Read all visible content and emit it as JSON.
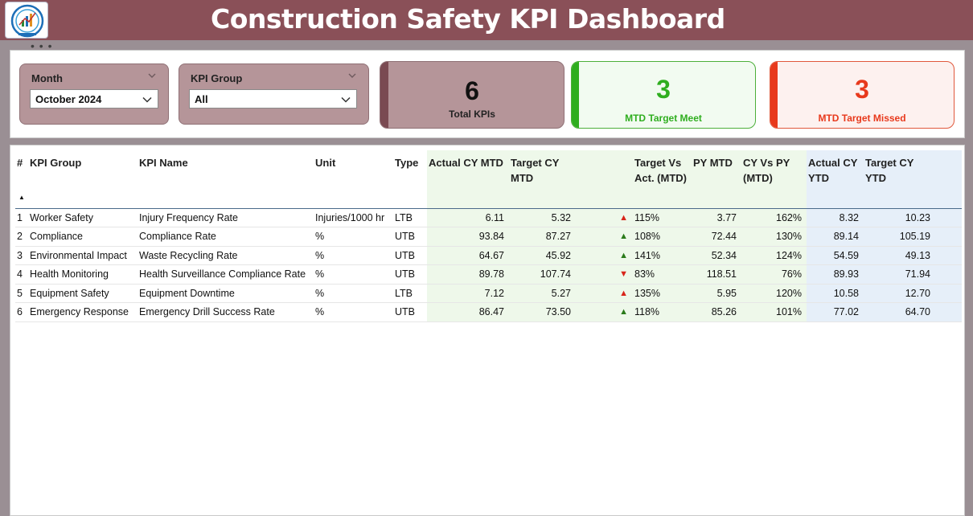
{
  "header": {
    "title": "Construction Safety KPI Dashboard",
    "logo_icon": "logo-icon"
  },
  "slicers": {
    "month": {
      "label": "Month",
      "value": "October 2024"
    },
    "kpi_group": {
      "label": "KPI Group",
      "value": "All"
    }
  },
  "cards": {
    "total": {
      "value": "6",
      "label": "Total KPIs"
    },
    "meet": {
      "value": "3",
      "label": "MTD Target Meet"
    },
    "missed": {
      "value": "3",
      "label": "MTD Target Missed"
    }
  },
  "colors": {
    "header_bg": "#8a5058",
    "accent_green": "#2fae1f",
    "accent_red": "#e8391c",
    "mtd_band": "#eef8ea",
    "ytd_band": "#e6eff9"
  },
  "table": {
    "headers": {
      "num": "#",
      "group": "KPI Group",
      "name": "KPI Name",
      "unit": "Unit",
      "type": "Type",
      "actual_mtd": "Actual CY MTD",
      "target_mtd": "Target CY MTD",
      "tva_mtd": "Target Vs Act. (MTD)",
      "py_mtd": "PY MTD",
      "cy_vs_py": "CY Vs PY (MTD)",
      "actual_ytd": "Actual CY YTD",
      "target_ytd": "Target CY YTD"
    },
    "rows": [
      {
        "num": "1",
        "group": "Worker Safety",
        "name": "Injury Frequency Rate",
        "unit": "Injuries/1000 hr",
        "type": "LTB",
        "actual_mtd": "6.11",
        "target_mtd": "5.32",
        "arrow": "▲",
        "arrow_icon": "up-red-triangle-icon",
        "tva": "115%",
        "py_mtd": "3.77",
        "cy_vs_py": "162%",
        "actual_ytd": "8.32",
        "target_ytd": "10.23"
      },
      {
        "num": "2",
        "group": "Compliance",
        "name": "Compliance Rate",
        "unit": "%",
        "type": "UTB",
        "actual_mtd": "93.84",
        "target_mtd": "87.27",
        "arrow": "▲",
        "arrow_icon": "up-green-triangle-icon",
        "tva": "108%",
        "py_mtd": "72.44",
        "cy_vs_py": "130%",
        "actual_ytd": "89.14",
        "target_ytd": "105.19"
      },
      {
        "num": "3",
        "group": "Environmental Impact",
        "name": "Waste Recycling Rate",
        "unit": "%",
        "type": "UTB",
        "actual_mtd": "64.67",
        "target_mtd": "45.92",
        "arrow": "▲",
        "arrow_icon": "up-green-triangle-icon",
        "tva": "141%",
        "py_mtd": "52.34",
        "cy_vs_py": "124%",
        "actual_ytd": "54.59",
        "target_ytd": "49.13"
      },
      {
        "num": "4",
        "group": "Health Monitoring",
        "name": "Health Surveillance Compliance Rate",
        "unit": "%",
        "type": "UTB",
        "actual_mtd": "89.78",
        "target_mtd": "107.74",
        "arrow": "▼",
        "arrow_icon": "down-red-triangle-icon",
        "tva": "83%",
        "py_mtd": "118.51",
        "cy_vs_py": "76%",
        "actual_ytd": "89.93",
        "target_ytd": "71.94"
      },
      {
        "num": "5",
        "group": "Equipment Safety",
        "name": "Equipment Downtime",
        "unit": "%",
        "type": "LTB",
        "actual_mtd": "7.12",
        "target_mtd": "5.27",
        "arrow": "▲",
        "arrow_icon": "up-red-triangle-icon",
        "tva": "135%",
        "py_mtd": "5.95",
        "cy_vs_py": "120%",
        "actual_ytd": "10.58",
        "target_ytd": "12.70"
      },
      {
        "num": "6",
        "group": "Emergency Response",
        "name": "Emergency Drill Success Rate",
        "unit": "%",
        "type": "UTB",
        "actual_mtd": "86.47",
        "target_mtd": "73.50",
        "arrow": "▲",
        "arrow_icon": "up-green-triangle-icon",
        "tva": "118%",
        "py_mtd": "85.26",
        "cy_vs_py": "101%",
        "actual_ytd": "77.02",
        "target_ytd": "64.70"
      }
    ]
  }
}
